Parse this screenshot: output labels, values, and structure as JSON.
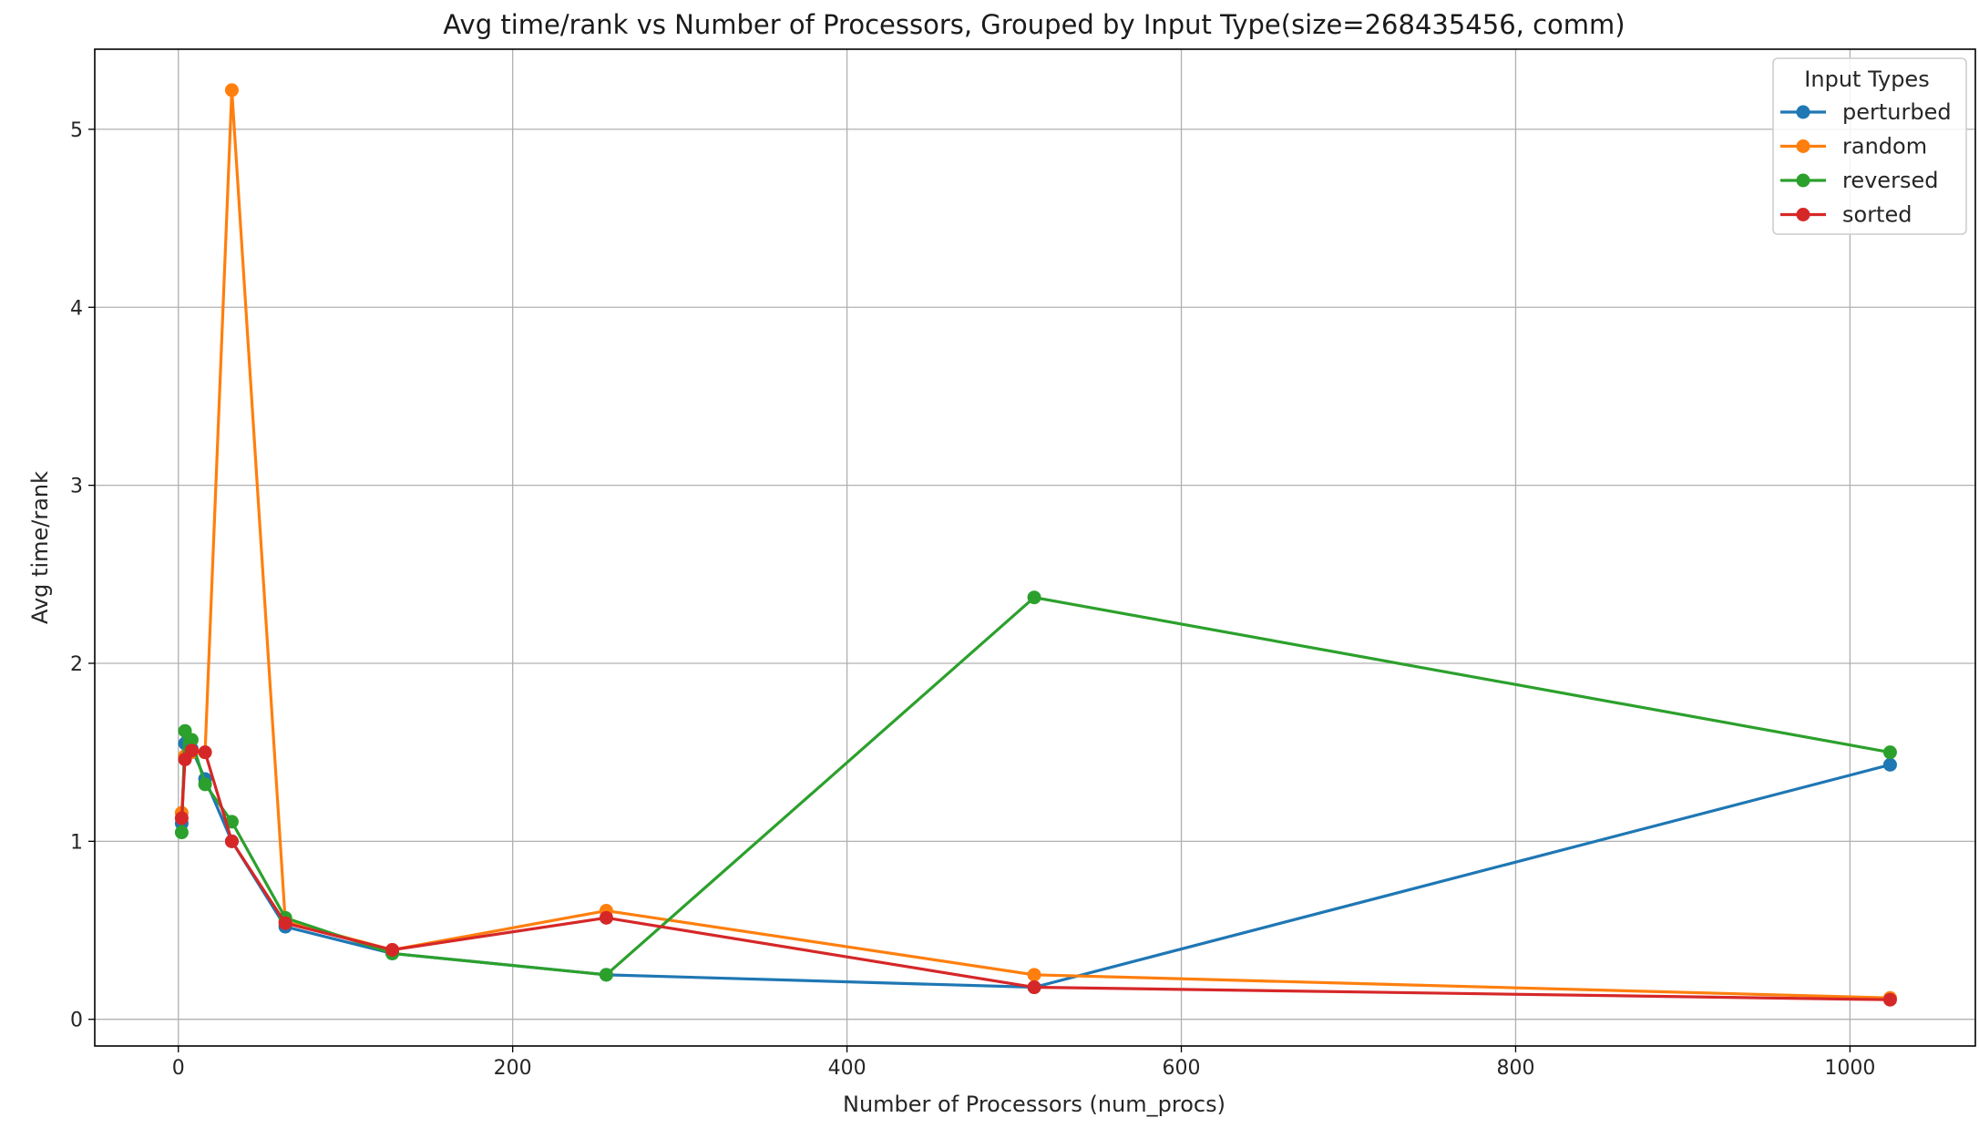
{
  "chart_data": {
    "type": "line",
    "title": "Avg time/rank vs Number of Processors, Grouped by Input Type(size=268435456, comm)",
    "xlabel": "Number of Processors (num_procs)",
    "ylabel": "Avg time/rank",
    "xlim": [
      -50,
      1075
    ],
    "ylim": [
      -0.15,
      5.45
    ],
    "xticks": [
      0,
      200,
      400,
      600,
      800,
      1000
    ],
    "yticks": [
      0,
      1,
      2,
      3,
      4,
      5
    ],
    "grid": true,
    "legend": {
      "title": "Input Types",
      "placement": "top-right"
    },
    "x": [
      2,
      4,
      8,
      16,
      32,
      64,
      128,
      256,
      512,
      1024
    ],
    "series": [
      {
        "name": "perturbed",
        "color": "#1f77b4",
        "values": [
          1.1,
          1.55,
          1.52,
          1.35,
          1.0,
          0.52,
          0.37,
          0.25,
          0.18,
          1.43
        ]
      },
      {
        "name": "random",
        "color": "#ff7f0e",
        "values": [
          1.16,
          1.48,
          1.5,
          1.5,
          5.22,
          0.55,
          0.39,
          0.61,
          0.25,
          0.12
        ]
      },
      {
        "name": "reversed",
        "color": "#2ca02c",
        "values": [
          1.05,
          1.62,
          1.57,
          1.32,
          1.11,
          0.57,
          0.37,
          0.25,
          2.37,
          1.5
        ]
      },
      {
        "name": "sorted",
        "color": "#d62728",
        "values": [
          1.13,
          1.46,
          1.51,
          1.5,
          1.0,
          0.54,
          0.39,
          0.57,
          0.18,
          0.11
        ]
      }
    ]
  }
}
